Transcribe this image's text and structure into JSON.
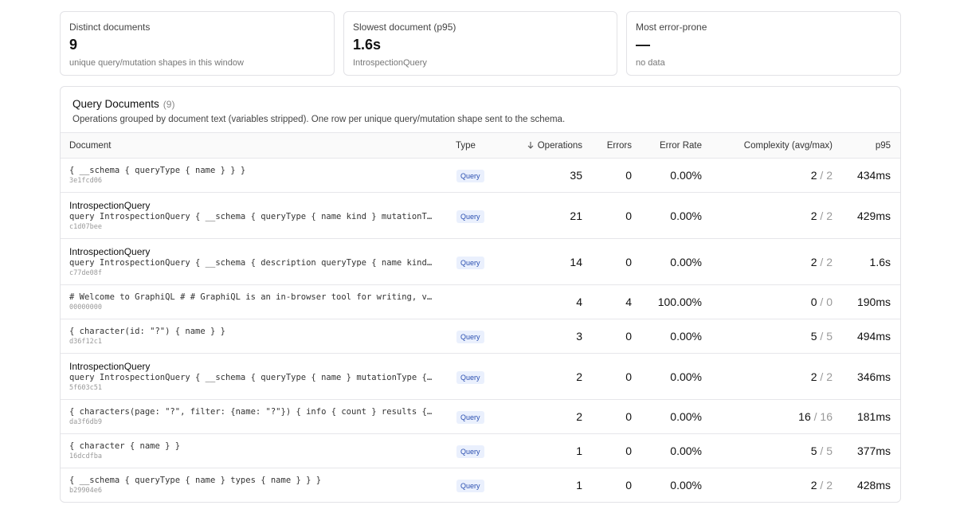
{
  "cards": [
    {
      "label": "Distinct documents",
      "value": "9",
      "note": "unique query/mutation shapes in this window"
    },
    {
      "label": "Slowest document (p95)",
      "value": "1.6s",
      "note": "IntrospectionQuery"
    },
    {
      "label": "Most error-prone",
      "value": "—",
      "note": "no data"
    }
  ],
  "panel": {
    "title": "Query Documents",
    "count": "(9)",
    "description": "Operations grouped by document text (variables stripped). One row per unique query/mutation shape sent to the schema.",
    "columns": [
      "Document",
      "Type",
      "Operations",
      "Errors",
      "Error Rate",
      "Complexity (avg/max)",
      "p95"
    ],
    "complexity_separator": "/",
    "rows": [
      {
        "query": "{ __schema { queryType { name } } }",
        "hash": "3e1fcd06",
        "type": "Query",
        "operations": 35,
        "errors": 0,
        "error_rate": "0.00%",
        "complexity_avg": 2,
        "complexity_max": 2,
        "p95": "434ms"
      },
      {
        "name": "IntrospectionQuery",
        "query": "query IntrospectionQuery { __schema { queryType { name kind } mutationType { name } }",
        "hash": "c1d07bee",
        "type": "Query",
        "operations": 21,
        "errors": 0,
        "error_rate": "0.00%",
        "complexity_avg": 2,
        "complexity_max": 2,
        "p95": "429ms"
      },
      {
        "name": "IntrospectionQuery",
        "query": "query IntrospectionQuery { __schema { description queryType { name kind } mutationType",
        "hash": "c77de08f",
        "type": "Query",
        "operations": 14,
        "errors": 0,
        "error_rate": "0.00%",
        "complexity_avg": 2,
        "complexity_max": 2,
        "p95": "1.6s"
      },
      {
        "query": "# Welcome to GraphiQL # # GraphiQL is an in-browser tool for writing, validating",
        "hash": "00000000",
        "operations": 4,
        "errors": 4,
        "error_rate": "100.00%",
        "complexity_avg": 0,
        "complexity_max": 0,
        "p95": "190ms"
      },
      {
        "query": "{ character(id: \"?\") { name } }",
        "hash": "d36f12c1",
        "type": "Query",
        "operations": 3,
        "errors": 0,
        "error_rate": "0.00%",
        "complexity_avg": 5,
        "complexity_max": 5,
        "p95": "494ms"
      },
      {
        "name": "IntrospectionQuery",
        "query": "query IntrospectionQuery { __schema { queryType { name } mutationType { name } }",
        "hash": "5f603c51",
        "type": "Query",
        "operations": 2,
        "errors": 0,
        "error_rate": "0.00%",
        "complexity_avg": 2,
        "complexity_max": 2,
        "p95": "346ms"
      },
      {
        "query": "{ characters(page: \"?\", filter: {name: \"?\"}) { info { count } results { name } } }",
        "hash": "da3f6db9",
        "type": "Query",
        "operations": 2,
        "errors": 0,
        "error_rate": "0.00%",
        "complexity_avg": 16,
        "complexity_max": 16,
        "p95": "181ms"
      },
      {
        "query": "{ character { name } }",
        "hash": "16dcdfba",
        "type": "Query",
        "operations": 1,
        "errors": 0,
        "error_rate": "0.00%",
        "complexity_avg": 5,
        "complexity_max": 5,
        "p95": "377ms"
      },
      {
        "query": "{ __schema { queryType { name } types { name } } }",
        "hash": "b29904e6",
        "type": "Query",
        "operations": 1,
        "errors": 0,
        "error_rate": "0.00%",
        "complexity_avg": 2,
        "complexity_max": 2,
        "p95": "428ms"
      }
    ]
  }
}
